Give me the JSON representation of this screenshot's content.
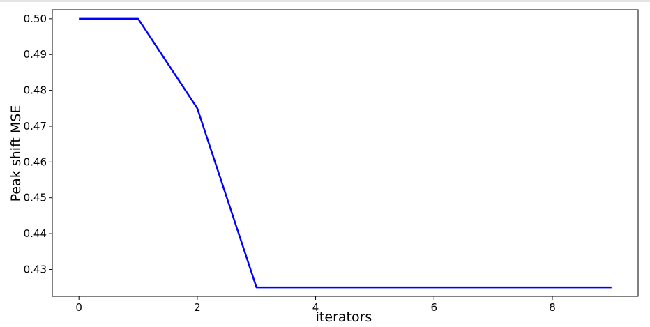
{
  "chart_data": {
    "type": "line",
    "title": "",
    "xlabel": "iterators",
    "ylabel": "Peak shift MSE",
    "x": [
      0,
      1,
      2,
      3,
      4,
      5,
      6,
      7,
      8,
      9
    ],
    "series": [
      {
        "values": [
          0.5,
          0.5,
          0.475,
          0.425,
          0.425,
          0.425,
          0.425,
          0.425,
          0.425,
          0.425
        ],
        "color": "#0000ff"
      }
    ],
    "xlim": [
      -0.45,
      9.45
    ],
    "ylim": [
      0.4225,
      0.5025
    ],
    "xticks": [
      0,
      2,
      4,
      6,
      8
    ],
    "xtick_labels": [
      "0",
      "2",
      "4",
      "6",
      "8"
    ],
    "yticks": [
      0.43,
      0.44,
      0.45,
      0.46,
      0.47,
      0.48,
      0.49,
      0.5
    ],
    "ytick_labels": [
      "0.43",
      "0.44",
      "0.45",
      "0.46",
      "0.47",
      "0.48",
      "0.49",
      "0.50"
    ],
    "grid": false,
    "legend": "none"
  }
}
